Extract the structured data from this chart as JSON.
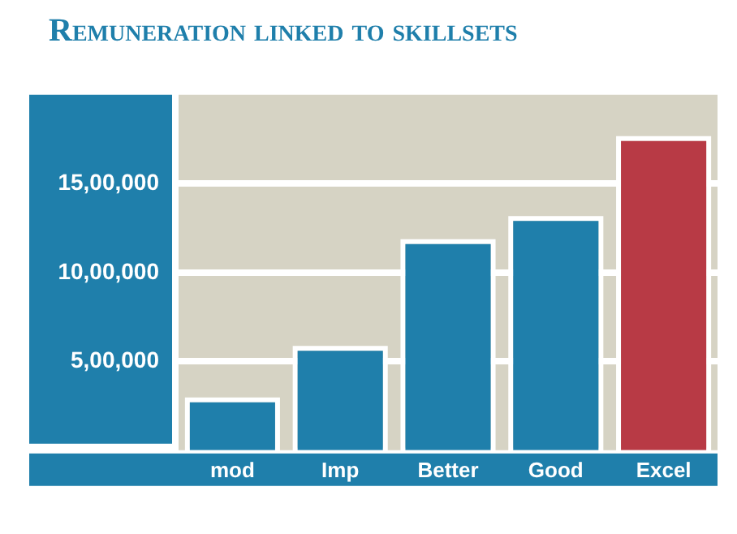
{
  "chart_data": {
    "type": "bar",
    "title": "Remuneration linked to skillsets",
    "categories": [
      "mod",
      "Imp",
      "Better",
      "Good",
      "Excel"
    ],
    "values": [
      270000,
      560000,
      1160000,
      1290000,
      1740000
    ],
    "colors": [
      "#1f7fab",
      "#1f7fab",
      "#1f7fab",
      "#1f7fab",
      "#b83a45"
    ],
    "ylim": [
      0,
      2000000
    ],
    "yticks": [
      {
        "value": 500000,
        "label": "5,00,000"
      },
      {
        "value": 1000000,
        "label": "10,00,000"
      },
      {
        "value": 1500000,
        "label": "15,00,000"
      }
    ],
    "grid": "y",
    "legend": false
  }
}
